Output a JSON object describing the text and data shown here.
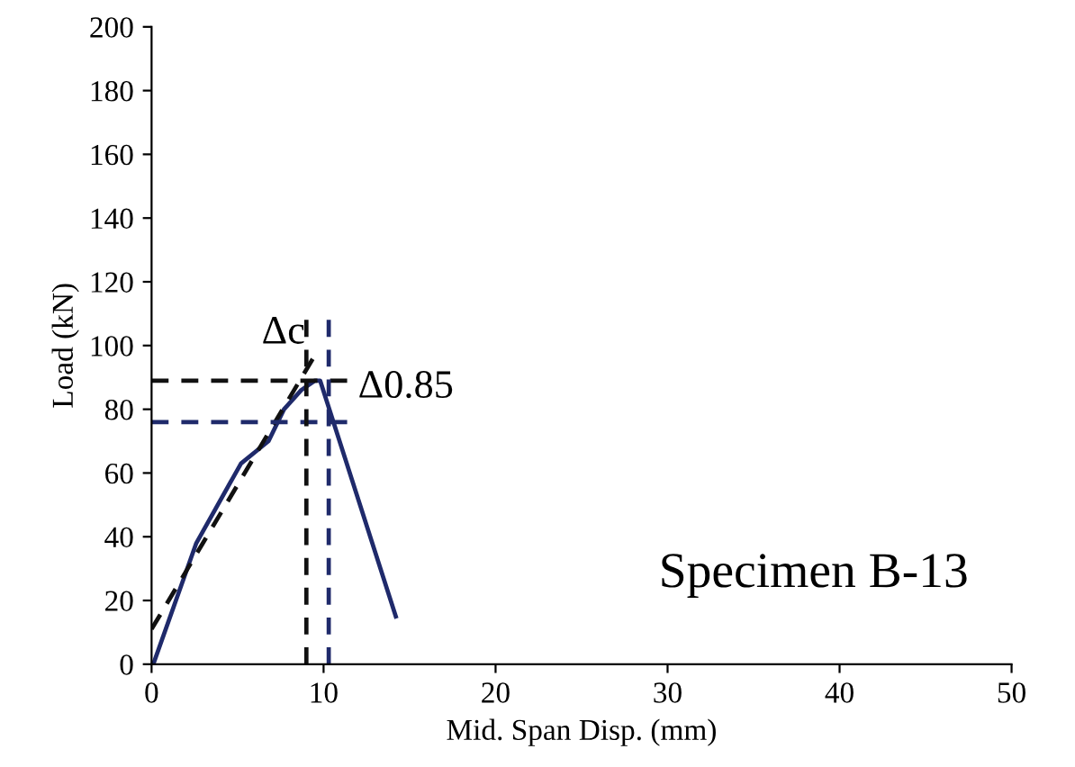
{
  "chart_data": {
    "type": "line",
    "xlabel": "Mid. Span Disp. (mm)",
    "ylabel": "Load (kN)",
    "xlim": [
      0,
      50
    ],
    "xticks": [
      0,
      10,
      20,
      30,
      40,
      50
    ],
    "ylim": [
      0,
      200
    ],
    "yticks": [
      0,
      20,
      40,
      60,
      80,
      100,
      120,
      140,
      160,
      180,
      200
    ],
    "grid": false,
    "marker": "none",
    "series": [
      {
        "color": "#1f2a6b",
        "line_style": "solid",
        "x": [
          0.1,
          2.6,
          5.2,
          6.8,
          7.7,
          8.7,
          9.5,
          9.8,
          14.2
        ],
        "values": [
          0,
          38,
          63,
          70,
          80,
          86,
          89,
          89,
          15
        ]
      },
      {
        "color": "#111111",
        "line_style": "dashed",
        "x": [
          0,
          9.5
        ],
        "values": [
          11,
          97
        ]
      },
      {
        "color": "#111111",
        "line_style": "dashed",
        "x": [
          0,
          11.5
        ],
        "values": [
          89,
          89
        ]
      },
      {
        "color": "#1f2a6b",
        "line_style": "dashed",
        "x": [
          0,
          11.5
        ],
        "values": [
          76,
          76
        ]
      },
      {
        "color": "#111111",
        "line_style": "dashed",
        "x": [
          9.0,
          9.0
        ],
        "values": [
          0,
          110
        ]
      },
      {
        "color": "#1f2a6b",
        "line_style": "dashed",
        "x": [
          10.3,
          10.3
        ],
        "values": [
          0,
          110
        ]
      }
    ],
    "annotations": [
      "Δc",
      "Δ0.85",
      "Specimen B-13"
    ]
  }
}
